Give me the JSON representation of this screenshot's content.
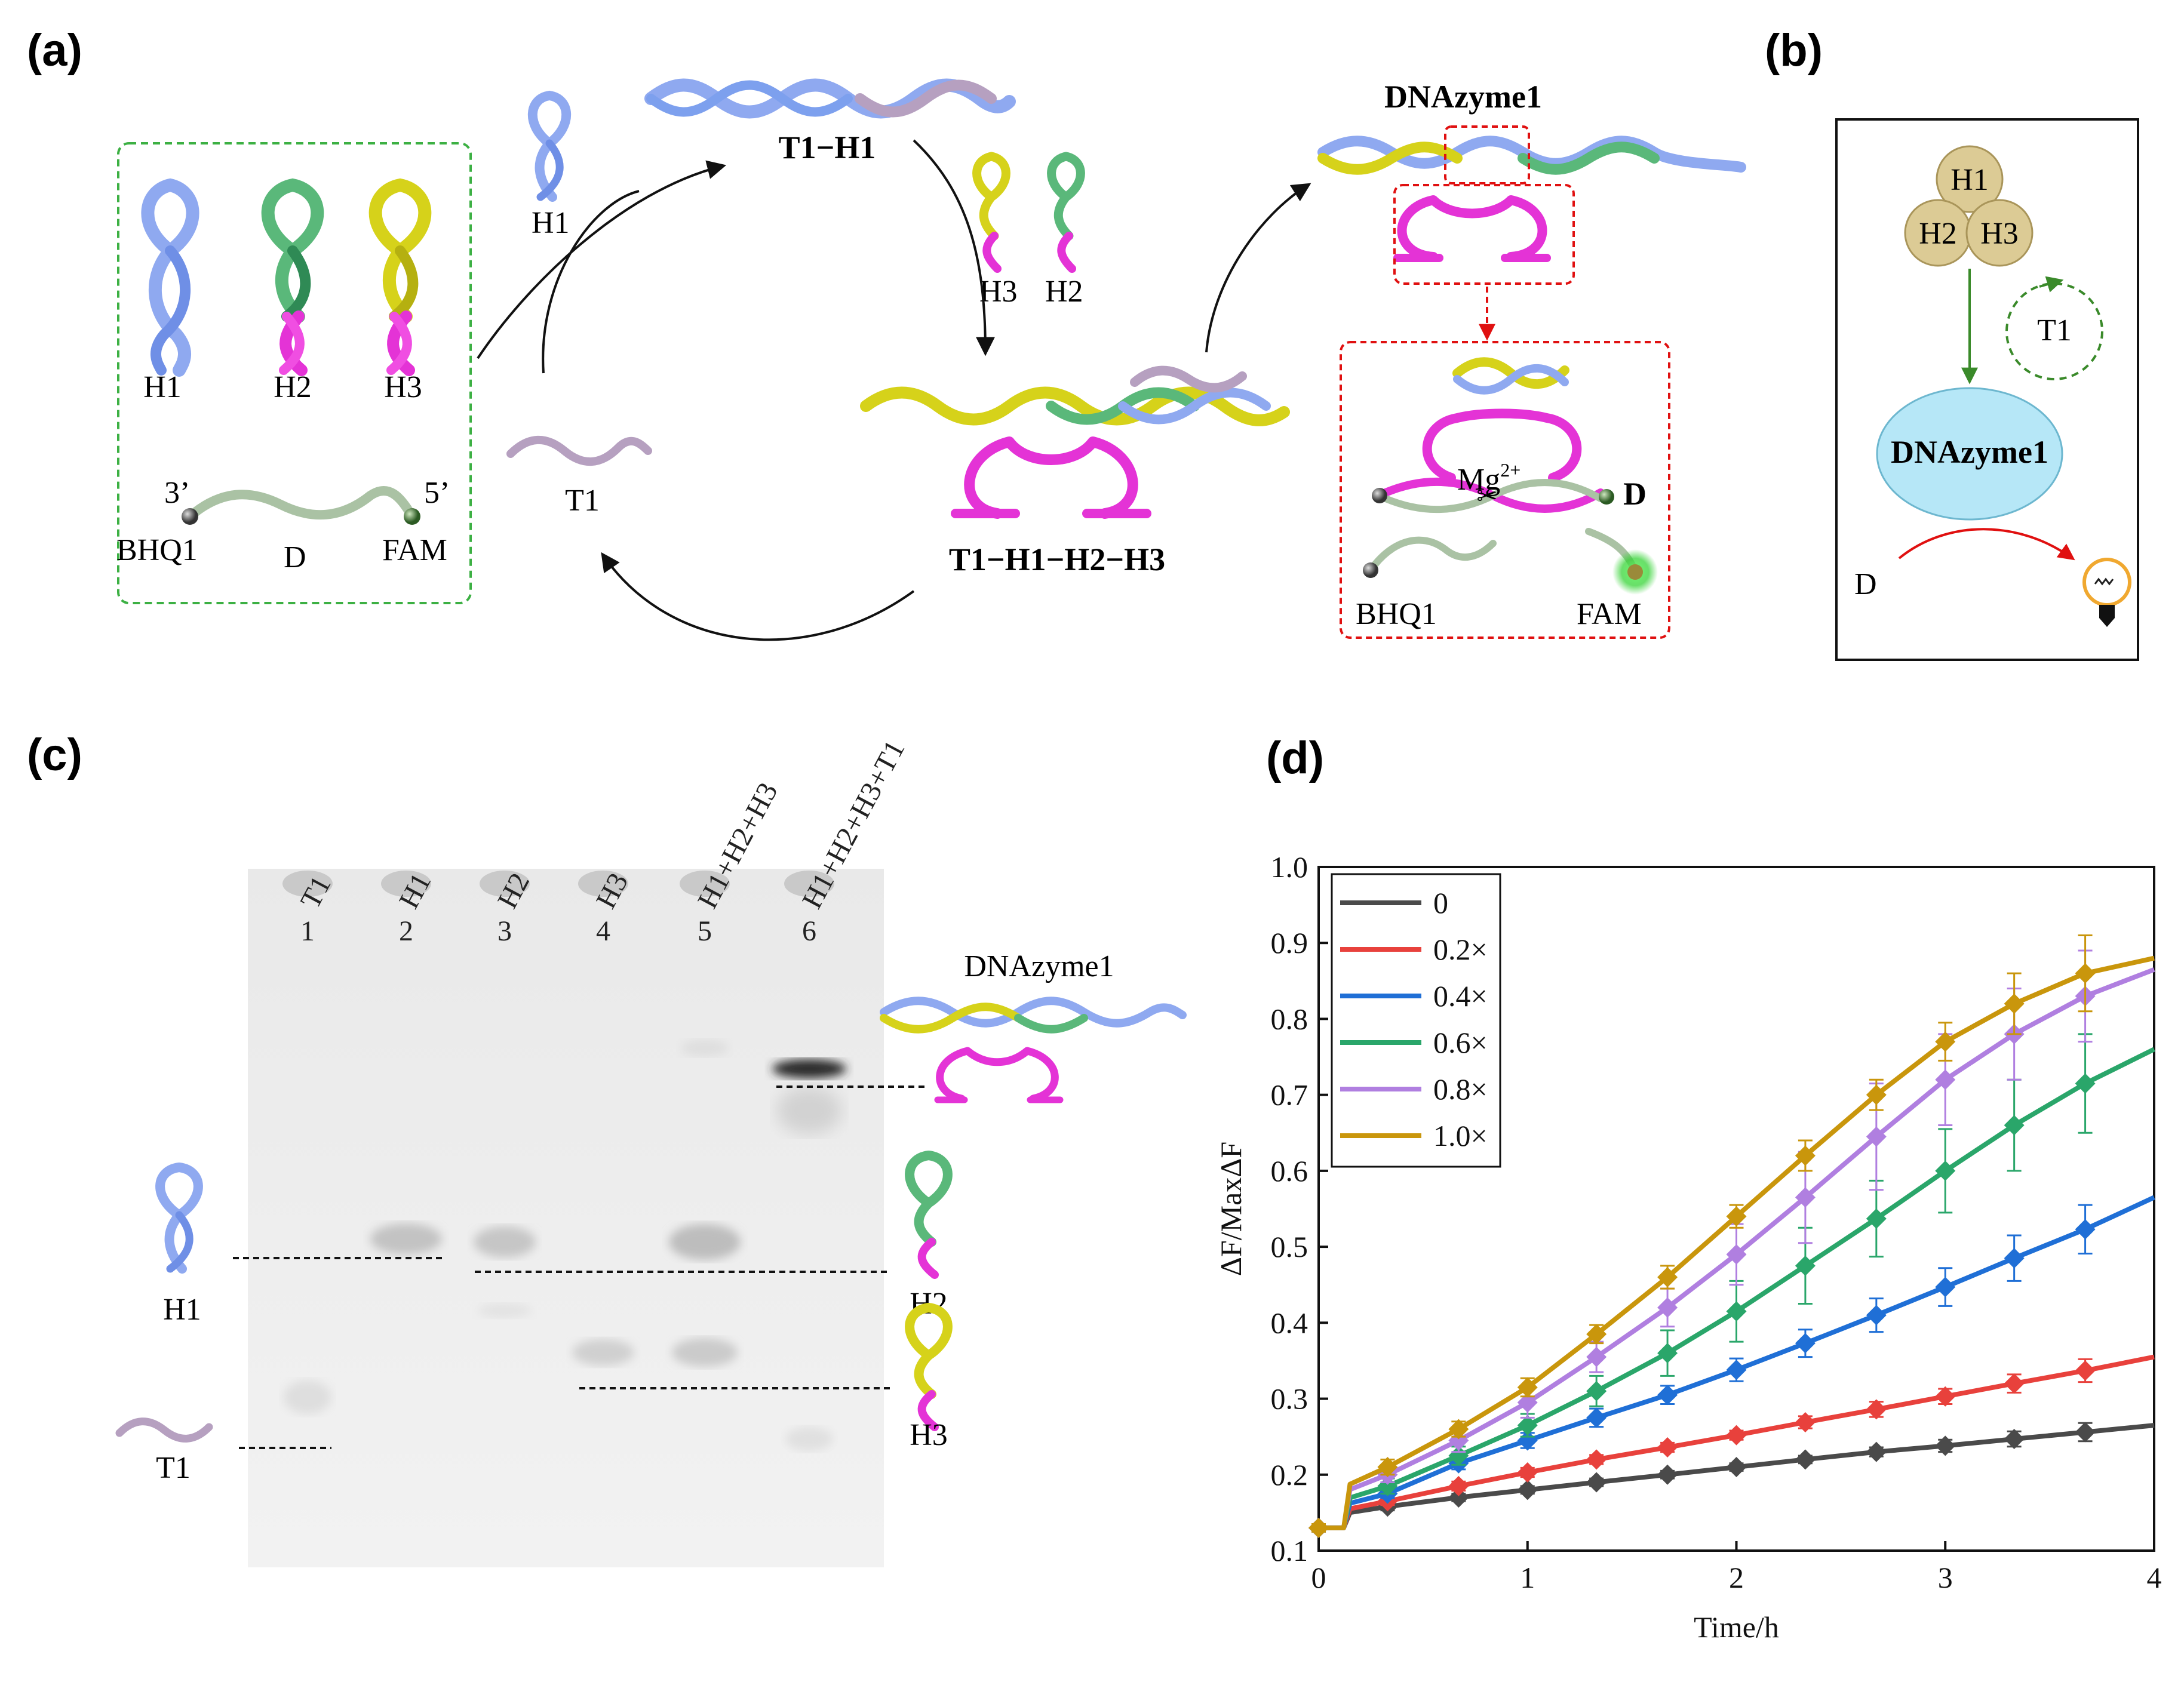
{
  "panels": {
    "a": "(a)",
    "b": "(b)",
    "c": "(c)",
    "d": "(d)"
  },
  "panel_a": {
    "box_labels": [
      "H1",
      "H2",
      "H3"
    ],
    "d_label": "D",
    "d_end3": "3’",
    "d_end5": "5’",
    "quencher": "BHQ1",
    "fluor": "FAM",
    "h1_free": "H1",
    "t1": "T1",
    "t1h1": "T1−H1",
    "h3": "H3",
    "h2": "H2",
    "complex": "T1−H1−H2−H3",
    "dnazyme": "DNAzyme1",
    "mg": "Mg",
    "mg_sup": "2+",
    "d_right": "D",
    "bhq1_right": "BHQ1",
    "fam_right": "FAM"
  },
  "panel_b": {
    "h1": "H1",
    "h2": "H2",
    "h3": "H3",
    "t1": "T1",
    "dnazyme": "DNAzyme1",
    "d": "D"
  },
  "panel_c": {
    "lanes": [
      {
        "label": "T1",
        "num": "1"
      },
      {
        "label": "H1",
        "num": "2"
      },
      {
        "label": "H2",
        "num": "3"
      },
      {
        "label": "H3",
        "num": "4"
      },
      {
        "label": "H1+H2+H3",
        "num": "5"
      },
      {
        "label": "H1+H2+H3+T1",
        "num": "6"
      }
    ],
    "side_labels": {
      "dnazyme": "DNAzyme1",
      "h1": "H1",
      "h2": "H2",
      "h3": "H3",
      "t1": "T1"
    }
  },
  "chart_data": {
    "type": "line",
    "xlabel": "Time/h",
    "ylabel": "ΔF/MaxΔF",
    "xlim": [
      0,
      4
    ],
    "ylim": [
      0.1,
      1.0
    ],
    "xticks": [
      0,
      1,
      2,
      3,
      4
    ],
    "yticks": [
      0.1,
      0.2,
      0.3,
      0.4,
      0.5,
      0.6,
      0.7,
      0.8,
      0.9,
      1.0
    ],
    "x_markers": [
      0,
      0.33,
      0.67,
      1.0,
      1.33,
      1.67,
      2.0,
      2.33,
      2.67,
      3.0,
      3.33,
      3.67
    ],
    "legend_position": "top-left",
    "series": [
      {
        "name": "0",
        "color": "#4a4a4a",
        "values": [
          0.13,
          0.158,
          0.17,
          0.18,
          0.19,
          0.2,
          0.21,
          0.22,
          0.23,
          0.238,
          0.247,
          0.256
        ],
        "errors": [
          0.005,
          0.005,
          0.005,
          0.005,
          0.005,
          0.005,
          0.005,
          0.005,
          0.006,
          0.008,
          0.01,
          0.012
        ],
        "end_value": 0.265
      },
      {
        "name": "0.2×",
        "color": "#e8413c",
        "values": [
          0.13,
          0.165,
          0.185,
          0.203,
          0.22,
          0.236,
          0.252,
          0.269,
          0.286,
          0.303,
          0.32,
          0.337
        ],
        "errors": [
          0.005,
          0.005,
          0.006,
          0.006,
          0.006,
          0.006,
          0.006,
          0.008,
          0.01,
          0.01,
          0.012,
          0.015
        ],
        "end_value": 0.355
      },
      {
        "name": "0.4×",
        "color": "#1f6fd6",
        "values": [
          0.13,
          0.175,
          0.215,
          0.245,
          0.275,
          0.305,
          0.338,
          0.373,
          0.41,
          0.447,
          0.485,
          0.523
        ],
        "errors": [
          0.005,
          0.006,
          0.008,
          0.01,
          0.012,
          0.012,
          0.015,
          0.018,
          0.022,
          0.025,
          0.03,
          0.032
        ],
        "end_value": 0.565
      },
      {
        "name": "0.6×",
        "color": "#2aa66a",
        "values": [
          0.13,
          0.185,
          0.225,
          0.265,
          0.31,
          0.36,
          0.415,
          0.475,
          0.537,
          0.6,
          0.66,
          0.715
        ],
        "errors": [
          0.005,
          0.01,
          0.012,
          0.015,
          0.02,
          0.03,
          0.04,
          0.05,
          0.05,
          0.055,
          0.06,
          0.065
        ],
        "end_value": 0.76
      },
      {
        "name": "0.8×",
        "color": "#b07fe0",
        "values": [
          0.13,
          0.2,
          0.245,
          0.295,
          0.355,
          0.42,
          0.49,
          0.565,
          0.645,
          0.72,
          0.78,
          0.83
        ],
        "errors": [
          0.005,
          0.01,
          0.015,
          0.02,
          0.02,
          0.025,
          0.04,
          0.06,
          0.07,
          0.06,
          0.06,
          0.06
        ],
        "end_value": 0.865
      },
      {
        "name": "1.0×",
        "color": "#c9960c",
        "values": [
          0.13,
          0.21,
          0.26,
          0.315,
          0.385,
          0.46,
          0.54,
          0.62,
          0.7,
          0.77,
          0.82,
          0.86
        ],
        "errors": [
          0.005,
          0.01,
          0.01,
          0.012,
          0.012,
          0.015,
          0.015,
          0.02,
          0.02,
          0.025,
          0.04,
          0.05
        ],
        "end_value": 0.88
      }
    ]
  }
}
